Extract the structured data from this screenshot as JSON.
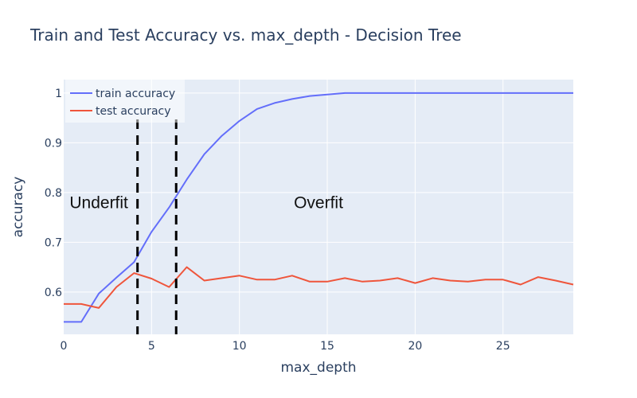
{
  "chart_data": {
    "type": "line",
    "title": "Train and Test Accuracy vs. max_depth - Decision Tree",
    "xlabel": "max_depth",
    "ylabel": "accuracy",
    "xlim": [
      0,
      29
    ],
    "ylim": [
      0.515,
      1.027
    ],
    "xticks": [
      0,
      5,
      10,
      15,
      20,
      25
    ],
    "xtick_labels": [
      "0",
      "5",
      "10",
      "15",
      "20",
      "25"
    ],
    "yticks": [
      0.6,
      0.7,
      0.8,
      0.9,
      1
    ],
    "ytick_labels": [
      "0.6",
      "0.7",
      "0.8",
      "0.9",
      "1"
    ],
    "grid": true,
    "legend_position": "top-left",
    "x": [
      0,
      1,
      2,
      3,
      4,
      5,
      6,
      7,
      8,
      9,
      10,
      11,
      12,
      13,
      14,
      15,
      16,
      17,
      18,
      19,
      20,
      21,
      22,
      23,
      24,
      25,
      26,
      27,
      28,
      29
    ],
    "series": [
      {
        "name": "train accuracy",
        "color": "#636efa",
        "values": [
          0.54,
          0.54,
          0.597,
          0.629,
          0.66,
          0.721,
          0.77,
          0.826,
          0.877,
          0.914,
          0.944,
          0.968,
          0.98,
          0.988,
          0.994,
          0.997,
          1.0,
          1.0,
          1.0,
          1.0,
          1.0,
          1.0,
          1.0,
          1.0,
          1.0,
          1.0,
          1.0,
          1.0,
          1.0,
          1.0
        ]
      },
      {
        "name": "test accuracy",
        "color": "#ef553b",
        "values": [
          0.576,
          0.576,
          0.568,
          0.61,
          0.638,
          0.627,
          0.61,
          0.65,
          0.623,
          0.628,
          0.633,
          0.625,
          0.625,
          0.633,
          0.621,
          0.621,
          0.628,
          0.621,
          0.623,
          0.628,
          0.618,
          0.628,
          0.623,
          0.621,
          0.625,
          0.625,
          0.615,
          0.63,
          0.623,
          0.615
        ]
      }
    ],
    "vlines": [
      {
        "x": 4.2,
        "style": "dashed",
        "color": "#000000"
      },
      {
        "x": 6.4,
        "style": "dashed",
        "color": "#000000"
      }
    ],
    "annotations": [
      {
        "text": "Underfit",
        "x": 2.0,
        "y": 0.78
      },
      {
        "text": "Overfit",
        "x": 14.5,
        "y": 0.78
      }
    ]
  }
}
